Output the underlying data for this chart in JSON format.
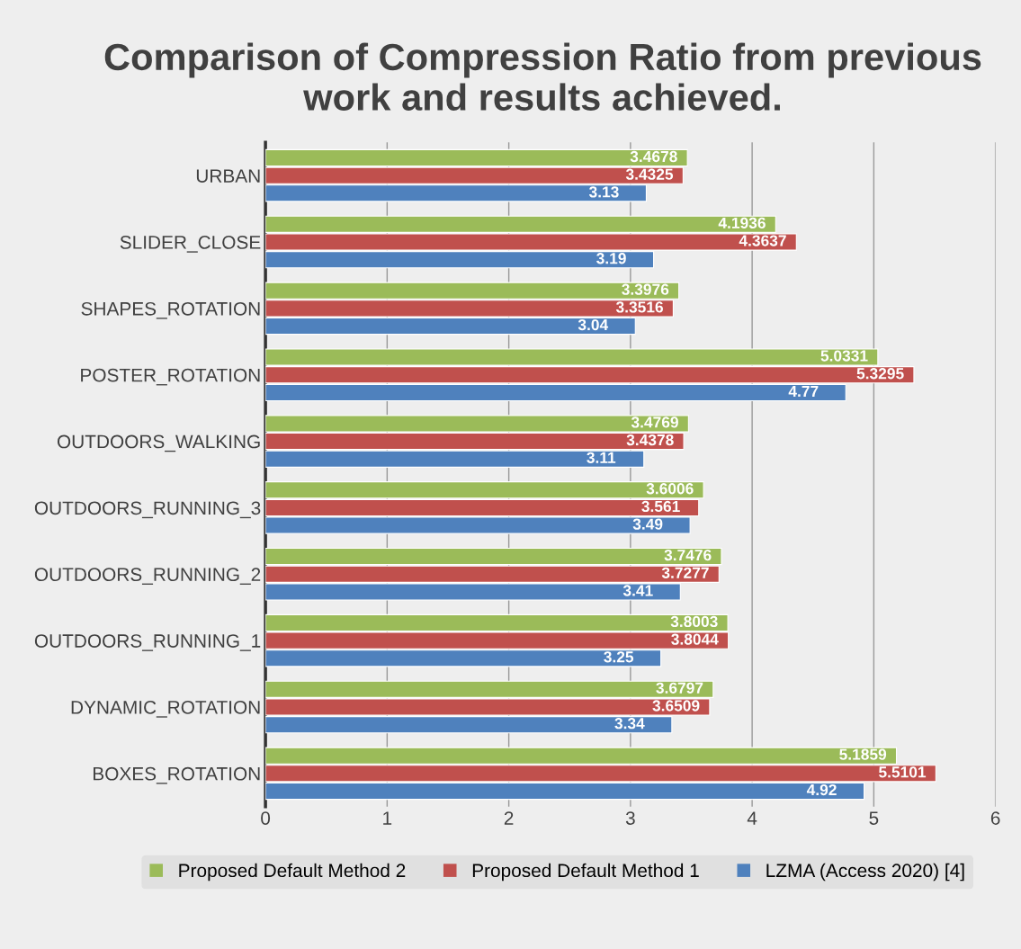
{
  "chart_data": {
    "type": "bar",
    "orientation": "horizontal",
    "title": "Comparison of Compression Ratio from previous work and results achieved.",
    "categories": [
      "URBAN",
      "SLIDER_CLOSE",
      "SHAPES_ROTATION",
      "POSTER_ROTATION",
      "OUTDOORS_WALKING",
      "OUTDOORS_RUNNING_3",
      "OUTDOORS_RUNNING_2",
      "OUTDOORS_RUNNING_1",
      "DYNAMIC_ROTATION",
      "BOXES_ROTATION"
    ],
    "series": [
      {
        "name": "Proposed Default Method 2",
        "color": "#9bbb59",
        "values": [
          3.4678,
          4.1936,
          3.3976,
          5.0331,
          3.4769,
          3.6006,
          3.7476,
          3.8003,
          3.6797,
          5.1859
        ]
      },
      {
        "name": "Proposed Default Method 1",
        "color": "#c0504d",
        "values": [
          3.4325,
          4.3637,
          3.3516,
          5.3295,
          3.4378,
          3.561,
          3.7277,
          3.8044,
          3.6509,
          5.5101
        ]
      },
      {
        "name": "LZMA (Access 2020) [4]",
        "color": "#4f81bd",
        "values": [
          3.13,
          3.19,
          3.04,
          4.77,
          3.11,
          3.49,
          3.41,
          3.25,
          3.34,
          4.92
        ]
      }
    ],
    "xlim": [
      0,
      6
    ],
    "xticks": [
      0,
      1,
      2,
      3,
      4,
      5,
      6
    ],
    "grid": "x",
    "legend": "bottom",
    "data_labels": true
  }
}
